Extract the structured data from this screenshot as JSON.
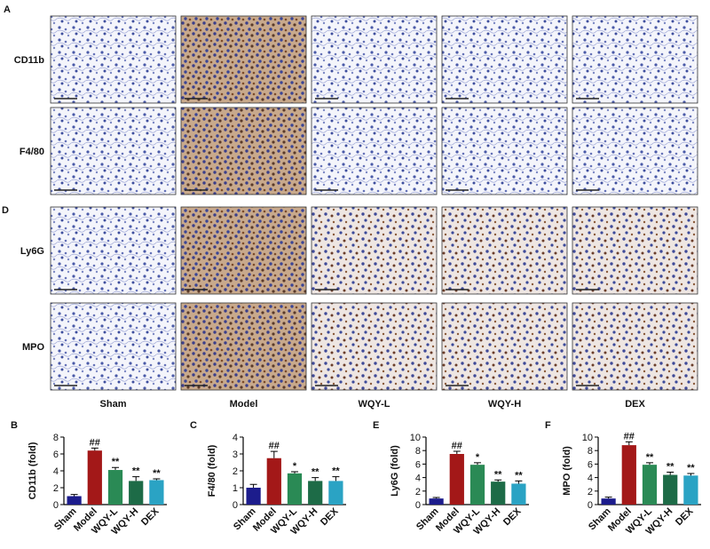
{
  "figure": {
    "panel_labels": [
      "A",
      "D"
    ],
    "row_labels": [
      "CD11b",
      "F4/80",
      "Ly6G",
      "MPO"
    ],
    "column_labels": [
      "Sham",
      "Model",
      "WQY-L",
      "WQY-H",
      "DEX"
    ]
  },
  "chart_data": [
    {
      "type": "bar",
      "label": "B",
      "y_label": "CD11b (fold)",
      "categories": [
        "Sham",
        "Model",
        "WQY-L",
        "WQY-H",
        "DEX"
      ],
      "values": [
        1.0,
        6.4,
        4.1,
        2.8,
        2.9
      ],
      "errors": [
        0.2,
        0.3,
        0.3,
        0.5,
        0.15
      ],
      "annotations": [
        null,
        "##",
        "**",
        "**",
        "**"
      ],
      "colors": [
        "#1c1c8c",
        "#a31818",
        "#2a8a55",
        "#1d6b47",
        "#2aa3c4"
      ],
      "ylim": [
        0,
        8
      ],
      "yticks": [
        0,
        2,
        4,
        6,
        8
      ]
    },
    {
      "type": "bar",
      "label": "C",
      "y_label": "F4/80 (fold)",
      "categories": [
        "Sham",
        "Model",
        "WQY-L",
        "WQY-H",
        "DEX"
      ],
      "values": [
        1.0,
        2.75,
        1.85,
        1.4,
        1.4
      ],
      "errors": [
        0.2,
        0.4,
        0.1,
        0.2,
        0.25
      ],
      "annotations": [
        null,
        "##",
        "*",
        "**",
        "**"
      ],
      "colors": [
        "#1c1c8c",
        "#a31818",
        "#2a8a55",
        "#1d6b47",
        "#2aa3c4"
      ],
      "ylim": [
        0,
        4
      ],
      "yticks": [
        0,
        1,
        2,
        3,
        4
      ]
    },
    {
      "type": "bar",
      "label": "E",
      "y_label": "Ly6G (fold)",
      "categories": [
        "Sham",
        "Model",
        "WQY-L",
        "WQY-H",
        "DEX"
      ],
      "values": [
        0.9,
        7.5,
        5.9,
        3.4,
        3.1
      ],
      "errors": [
        0.15,
        0.4,
        0.3,
        0.25,
        0.4
      ],
      "annotations": [
        null,
        "##",
        "*",
        "**",
        "**"
      ],
      "colors": [
        "#1c1c8c",
        "#a31818",
        "#2a8a55",
        "#1d6b47",
        "#2aa3c4"
      ],
      "ylim": [
        0,
        10
      ],
      "yticks": [
        0,
        2,
        4,
        6,
        8,
        10
      ]
    },
    {
      "type": "bar",
      "label": "F",
      "y_label": "MPO (fold)",
      "categories": [
        "Sham",
        "Model",
        "WQY-L",
        "WQY-H",
        "DEX"
      ],
      "values": [
        0.9,
        8.8,
        5.9,
        4.4,
        4.3
      ],
      "errors": [
        0.2,
        0.5,
        0.3,
        0.4,
        0.3
      ],
      "annotations": [
        null,
        "##",
        "**",
        "**",
        "**"
      ],
      "colors": [
        "#1c1c8c",
        "#a31818",
        "#2a8a55",
        "#1d6b47",
        "#2aa3c4"
      ],
      "ylim": [
        0,
        10
      ],
      "yticks": [
        0,
        2,
        4,
        6,
        8,
        10
      ]
    }
  ]
}
